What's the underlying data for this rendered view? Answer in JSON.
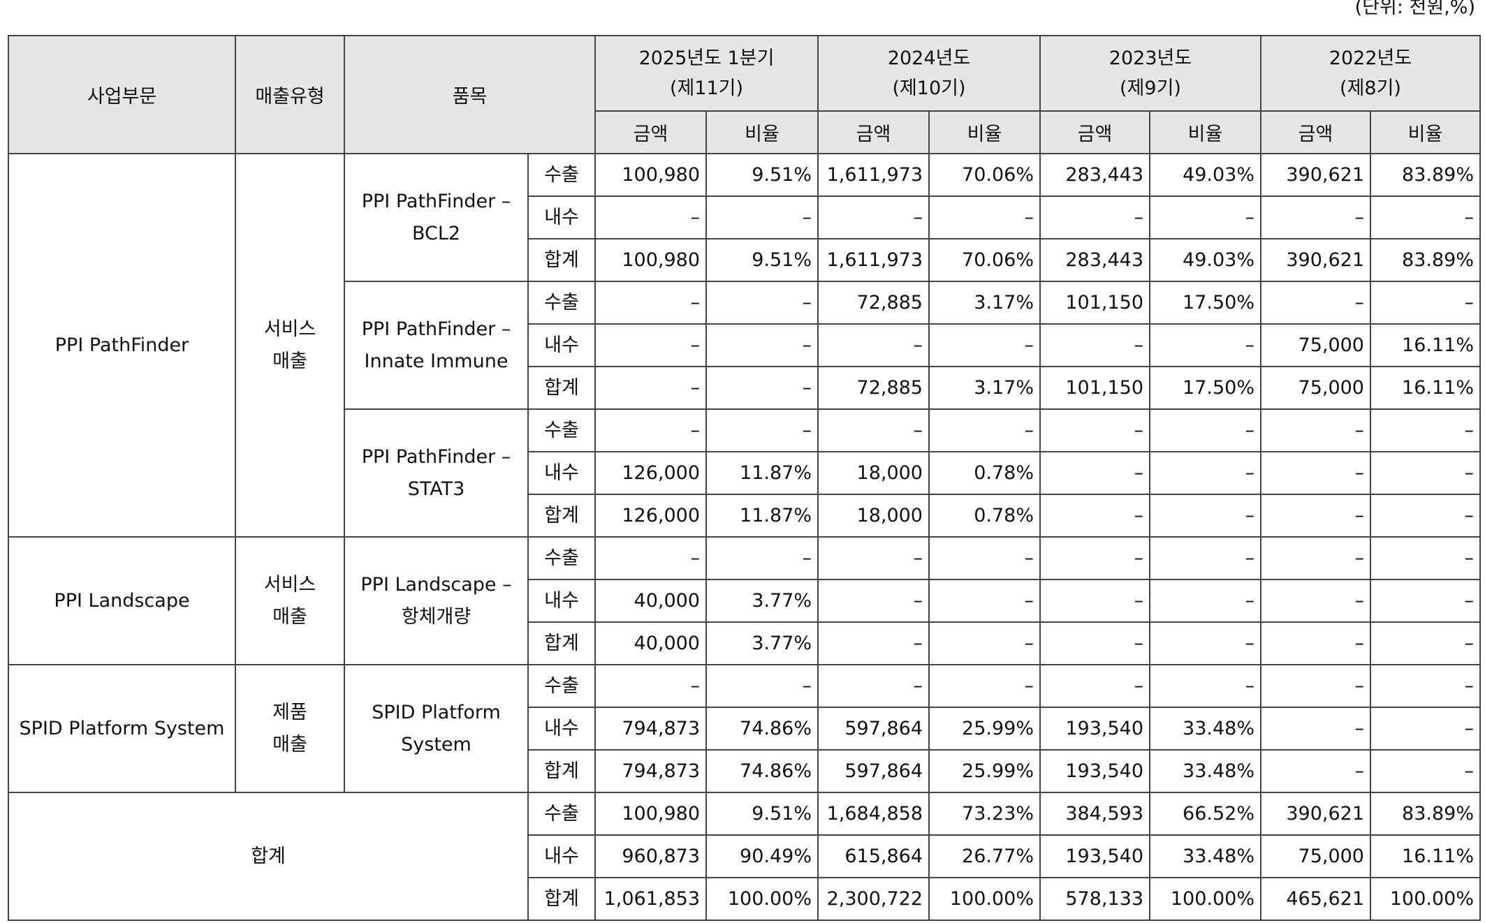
{
  "unit": "(단위: 천원,%)",
  "header": {
    "segment": "사업부문",
    "sales_type": "매출유형",
    "item": "품목",
    "periods": [
      {
        "label": "2025년도 1분기",
        "term": "(제11기)"
      },
      {
        "label": "2024년도",
        "term": "(제10기)"
      },
      {
        "label": "2023년도",
        "term": "(제9기)"
      },
      {
        "label": "2022년도",
        "term": "(제8기)"
      }
    ],
    "amount": "금액",
    "ratio": "비율"
  },
  "segments": [
    {
      "name": "PPI PathFinder",
      "sales_type": "서비스\n매출",
      "items": [
        {
          "name": "PPI PathFinder –\nBCL2",
          "rows": [
            {
              "type": "수출",
              "cells": [
                "100,980",
                "9.51%",
                "1,611,973",
                "70.06%",
                "283,443",
                "49.03%",
                "390,621",
                "83.89%"
              ]
            },
            {
              "type": "내수",
              "cells": [
                "–",
                "–",
                "–",
                "–",
                "–",
                "–",
                "–",
                "–"
              ]
            },
            {
              "type": "합계",
              "cells": [
                "100,980",
                "9.51%",
                "1,611,973",
                "70.06%",
                "283,443",
                "49.03%",
                "390,621",
                "83.89%"
              ]
            }
          ]
        },
        {
          "name": "PPI PathFinder –\nInnate Immune",
          "rows": [
            {
              "type": "수출",
              "cells": [
                "–",
                "–",
                "72,885",
                "3.17%",
                "101,150",
                "17.50%",
                "–",
                "–"
              ]
            },
            {
              "type": "내수",
              "cells": [
                "–",
                "–",
                "–",
                "–",
                "–",
                "–",
                "75,000",
                "16.11%"
              ]
            },
            {
              "type": "합계",
              "cells": [
                "–",
                "–",
                "72,885",
                "3.17%",
                "101,150",
                "17.50%",
                "75,000",
                "16.11%"
              ]
            }
          ]
        },
        {
          "name": "PPI PathFinder –\nSTAT3",
          "rows": [
            {
              "type": "수출",
              "cells": [
                "–",
                "–",
                "–",
                "–",
                "–",
                "–",
                "–",
                "–"
              ]
            },
            {
              "type": "내수",
              "cells": [
                "126,000",
                "11.87%",
                "18,000",
                "0.78%",
                "–",
                "–",
                "–",
                "–"
              ]
            },
            {
              "type": "합계",
              "cells": [
                "126,000",
                "11.87%",
                "18,000",
                "0.78%",
                "–",
                "–",
                "–",
                "–"
              ]
            }
          ]
        }
      ]
    },
    {
      "name": "PPI Landscape",
      "sales_type": "서비스\n매출",
      "items": [
        {
          "name": "PPI Landscape –\n항체개량",
          "rows": [
            {
              "type": "수출",
              "cells": [
                "–",
                "–",
                "–",
                "–",
                "–",
                "–",
                "–",
                "–"
              ]
            },
            {
              "type": "내수",
              "cells": [
                "40,000",
                "3.77%",
                "–",
                "–",
                "–",
                "–",
                "–",
                "–"
              ]
            },
            {
              "type": "합계",
              "cells": [
                "40,000",
                "3.77%",
                "–",
                "–",
                "–",
                "–",
                "–",
                "–"
              ]
            }
          ]
        }
      ]
    },
    {
      "name": "SPID Platform System",
      "sales_type": "제품\n매출",
      "items": [
        {
          "name": "SPID Platform\nSystem",
          "rows": [
            {
              "type": "수출",
              "cells": [
                "–",
                "–",
                "–",
                "–",
                "–",
                "–",
                "–",
                "–"
              ]
            },
            {
              "type": "내수",
              "cells": [
                "794,873",
                "74.86%",
                "597,864",
                "25.99%",
                "193,540",
                "33.48%",
                "–",
                "–"
              ]
            },
            {
              "type": "합계",
              "cells": [
                "794,873",
                "74.86%",
                "597,864",
                "25.99%",
                "193,540",
                "33.48%",
                "–",
                "–"
              ]
            }
          ]
        }
      ]
    }
  ],
  "total": {
    "label": "합계",
    "rows": [
      {
        "type": "수출",
        "cells": [
          "100,980",
          "9.51%",
          "1,684,858",
          "73.23%",
          "384,593",
          "66.52%",
          "390,621",
          "83.89%"
        ]
      },
      {
        "type": "내수",
        "cells": [
          "960,873",
          "90.49%",
          "615,864",
          "26.77%",
          "193,540",
          "33.48%",
          "75,000",
          "16.11%"
        ]
      },
      {
        "type": "합계",
        "cells": [
          "1,061,853",
          "100.00%",
          "2,300,722",
          "100.00%",
          "578,133",
          "100.00%",
          "465,621",
          "100.00%"
        ]
      }
    ]
  }
}
